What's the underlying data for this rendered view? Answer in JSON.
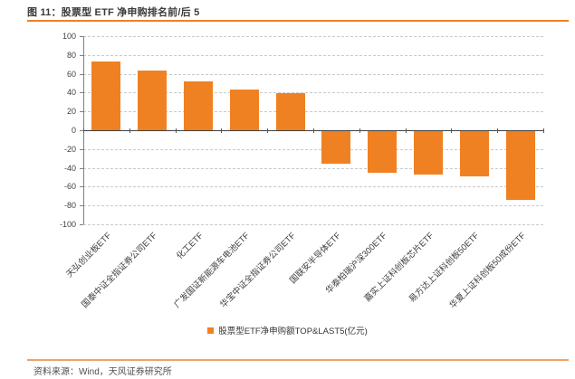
{
  "header": {
    "title": "图 11：股票型 ETF 净申购排名前/后 5"
  },
  "chart_data": {
    "type": "bar",
    "title": "股票型 ETF 净申购排名前/后 5",
    "categories": [
      "天弘创业板ETF",
      "国泰中证全指证券公司ETF",
      "化工ETF",
      "广发国证新能源车电池ETF",
      "华宝中证全指证券公司ETF",
      "国联安半导体ETF",
      "华泰柏瑞沪深300ETF",
      "嘉实上证科创板芯片ETF",
      "易方达上证科创板50ETF",
      "华夏上证科创板50成份ETF"
    ],
    "series": [
      {
        "name": "股票型ETF净申购额TOP&LAST5(亿元)",
        "values": [
          73,
          63,
          52,
          43,
          39,
          -35,
          -44,
          -46,
          -48,
          -73
        ]
      }
    ],
    "ylim": [
      -100,
      100
    ],
    "ytick_step": 20,
    "grid": "horizontal-dashed",
    "legend_position": "bottom-center",
    "x_label_rotation_deg": 45,
    "bar_color": "#F08122"
  },
  "footer": {
    "source": "资料来源：Wind，天风证券研究所"
  },
  "colors": {
    "bar": "#F08122",
    "title_rule": "#F08122",
    "footer_rule": "#F0A265",
    "grid": "#C9C9C9",
    "axis": "#404040",
    "title_text": "#3A3A3A"
  }
}
